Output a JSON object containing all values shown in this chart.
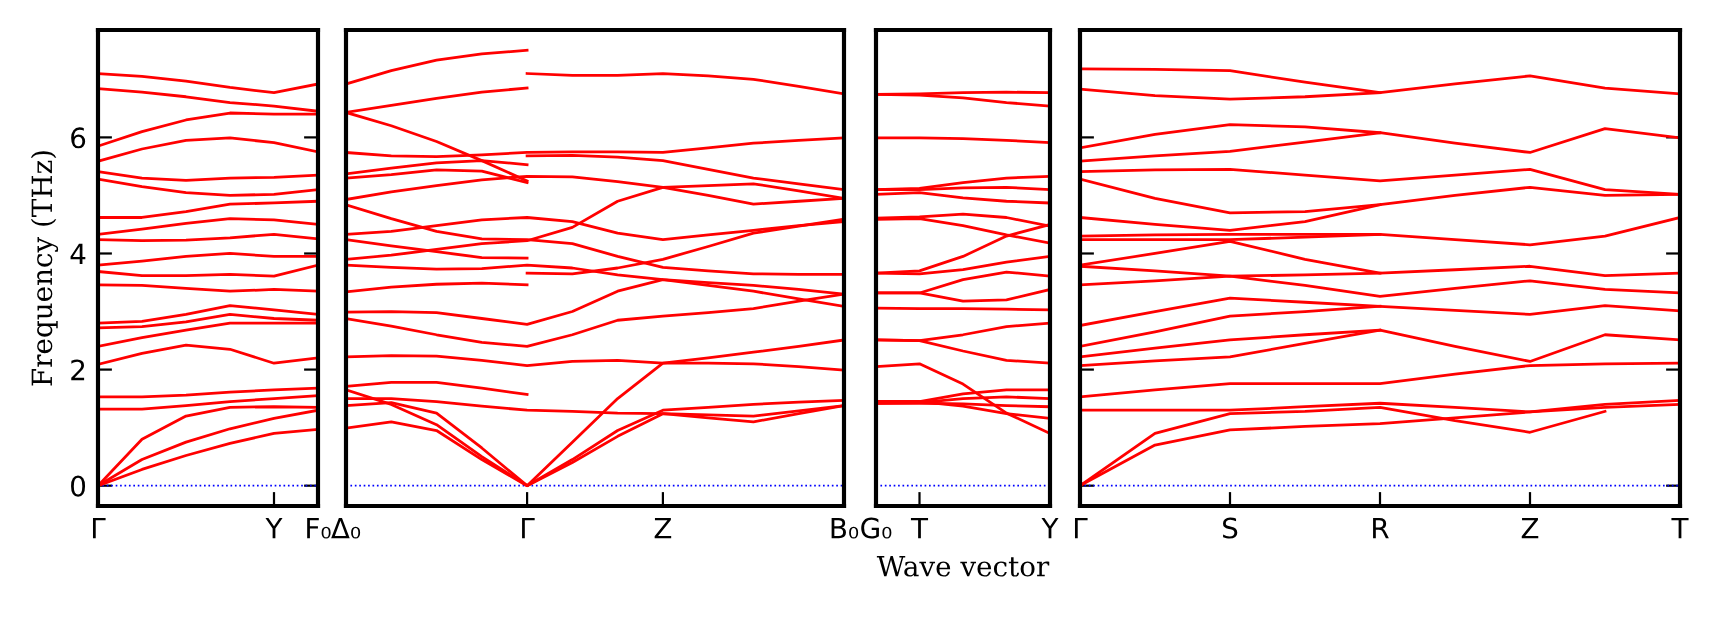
{
  "chart_data": [
    {
      "type": "line",
      "ylabel": "Frequency (THz)",
      "ylim": [
        -0.35,
        7.85
      ],
      "categories": [
        "Γ",
        null,
        null,
        null,
        "Y",
        "F₀"
      ],
      "yticks": [
        0,
        2,
        4,
        6
      ],
      "grid": false,
      "marker": "none",
      "line_style": "solid",
      "ref_lines": [
        {
          "axis": "y",
          "value": 0,
          "color": "#0000ff",
          "line_style": "dotted"
        }
      ],
      "series": [
        {
          "color": "#ff0000",
          "values": [
            7.1,
            7.05,
            6.97,
            6.86,
            6.77,
            6.92
          ]
        },
        {
          "color": "#ff0000",
          "values": [
            6.84,
            6.78,
            6.7,
            6.6,
            6.54,
            6.45
          ]
        },
        {
          "color": "#ff0000",
          "values": [
            5.85,
            6.1,
            6.3,
            6.42,
            6.4,
            6.4
          ]
        },
        {
          "color": "#ff0000",
          "values": [
            5.59,
            5.8,
            5.95,
            5.99,
            5.91,
            5.75
          ]
        },
        {
          "color": "#ff0000",
          "values": [
            5.41,
            5.3,
            5.26,
            5.3,
            5.31,
            5.35
          ]
        },
        {
          "color": "#ff0000",
          "values": [
            5.28,
            5.15,
            5.05,
            5.0,
            5.02,
            5.1
          ]
        },
        {
          "color": "#ff0000",
          "values": [
            4.62,
            4.62,
            4.72,
            4.85,
            4.87,
            4.9
          ]
        },
        {
          "color": "#ff0000",
          "values": [
            4.33,
            4.42,
            4.52,
            4.6,
            4.58,
            4.5
          ]
        },
        {
          "color": "#ff0000",
          "values": [
            4.24,
            4.22,
            4.23,
            4.27,
            4.33,
            4.25
          ]
        },
        {
          "color": "#ff0000",
          "values": [
            3.8,
            3.87,
            3.95,
            4.0,
            3.95,
            3.95
          ]
        },
        {
          "color": "#ff0000",
          "values": [
            3.69,
            3.62,
            3.62,
            3.64,
            3.61,
            3.8
          ]
        },
        {
          "color": "#ff0000",
          "values": [
            3.46,
            3.45,
            3.4,
            3.35,
            3.38,
            3.35
          ]
        },
        {
          "color": "#ff0000",
          "values": [
            2.8,
            2.83,
            2.95,
            3.1,
            3.03,
            2.95
          ]
        },
        {
          "color": "#ff0000",
          "values": [
            2.72,
            2.74,
            2.82,
            2.95,
            2.88,
            2.85
          ]
        },
        {
          "color": "#ff0000",
          "values": [
            2.4,
            2.55,
            2.68,
            2.8,
            2.8,
            2.8
          ]
        },
        {
          "color": "#ff0000",
          "values": [
            2.09,
            2.28,
            2.42,
            2.35,
            2.11,
            2.2
          ]
        },
        {
          "color": "#ff0000",
          "values": [
            1.53,
            1.53,
            1.56,
            1.61,
            1.65,
            1.68
          ]
        },
        {
          "color": "#ff0000",
          "values": [
            1.32,
            1.32,
            1.38,
            1.45,
            1.5,
            1.55
          ]
        },
        {
          "color": "#ff0000",
          "values": [
            0,
            0.8,
            1.2,
            1.35,
            1.36,
            1.35
          ]
        },
        {
          "color": "#ff0000",
          "values": [
            0,
            0.45,
            0.75,
            0.98,
            1.16,
            1.3
          ]
        },
        {
          "color": "#ff0000",
          "values": [
            0,
            0.28,
            0.52,
            0.73,
            0.9,
            0.97
          ]
        }
      ]
    },
    {
      "type": "line",
      "ylim": [
        -0.35,
        7.85
      ],
      "tick_labels": "x",
      "categories": [
        "Δ₀",
        null,
        null,
        null,
        "Γ",
        null,
        null,
        "Z",
        null,
        null,
        null,
        "B₀"
      ],
      "grid": false,
      "marker": "none",
      "line_style": "solid",
      "ref_lines": [
        {
          "axis": "y",
          "value": 0,
          "color": "#0000ff",
          "line_style": "dotted"
        }
      ],
      "series": [
        {
          "color": "#ff0000",
          "values": [
            6.92,
            7.15,
            7.33,
            7.44,
            7.5,
            null,
            null,
            null,
            null,
            null,
            null,
            null
          ]
        },
        {
          "color": "#ff0000",
          "values": [
            6.43,
            6.55,
            6.67,
            6.78,
            6.85,
            null,
            null,
            null,
            null,
            null,
            null,
            null
          ]
        },
        {
          "color": "#ff0000",
          "values": [
            6.43,
            6.2,
            5.93,
            5.6,
            5.25,
            null,
            null,
            null,
            null,
            null,
            null,
            null
          ]
        },
        {
          "color": "#ff0000",
          "values": [
            5.74,
            5.68,
            5.67,
            5.7,
            5.74,
            5.75,
            5.75,
            5.74,
            5.82,
            5.9,
            5.95,
            5.99
          ]
        },
        {
          "color": "#ff0000",
          "values": [
            5.37,
            5.47,
            5.56,
            5.6,
            5.53,
            null,
            null,
            null,
            null,
            null,
            null,
            null
          ]
        },
        {
          "color": "#ff0000",
          "values": [
            5.3,
            5.36,
            5.44,
            5.42,
            5.22,
            null,
            null,
            null,
            null,
            null,
            null,
            null
          ]
        },
        {
          "color": "#ff0000",
          "values": [
            4.93,
            5.06,
            5.17,
            5.27,
            5.33,
            5.32,
            5.24,
            5.14,
            5.0,
            4.85,
            4.9,
            4.95
          ]
        },
        {
          "color": "#ff0000",
          "values": [
            4.84,
            4.6,
            4.38,
            4.25,
            4.24,
            4.17,
            3.95,
            3.76,
            3.7,
            3.65,
            3.64,
            3.64
          ]
        },
        {
          "color": "#ff0000",
          "values": [
            4.33,
            4.38,
            4.48,
            4.58,
            4.62,
            4.55,
            4.35,
            4.24,
            4.32,
            4.4,
            4.48,
            4.55
          ]
        },
        {
          "color": "#ff0000",
          "values": [
            4.24,
            4.13,
            4.03,
            3.93,
            3.92,
            null,
            null,
            null,
            null,
            null,
            null,
            null
          ]
        },
        {
          "color": "#ff0000",
          "values": [
            3.9,
            3.97,
            4.07,
            4.17,
            4.22,
            4.45,
            4.9,
            5.14,
            5.17,
            5.2,
            5.08,
            4.95
          ]
        },
        {
          "color": "#ff0000",
          "values": [
            3.8,
            3.76,
            3.73,
            3.74,
            3.8,
            3.75,
            3.63,
            3.55,
            3.5,
            3.45,
            3.38,
            3.3
          ]
        },
        {
          "color": "#ff0000",
          "values": [
            3.34,
            3.42,
            3.47,
            3.49,
            3.46,
            null,
            null,
            null,
            null,
            null,
            null,
            null
          ]
        },
        {
          "color": "#ff0000",
          "values": [
            2.99,
            3.0,
            2.98,
            2.88,
            2.78,
            3.0,
            3.35,
            3.55,
            3.45,
            3.35,
            3.22,
            3.09
          ]
        },
        {
          "color": "#ff0000",
          "values": [
            2.88,
            2.75,
            2.6,
            2.47,
            2.4,
            2.6,
            2.85,
            2.92,
            2.98,
            3.05,
            3.18,
            3.3
          ]
        },
        {
          "color": "#ff0000",
          "values": [
            2.22,
            2.24,
            2.23,
            2.16,
            2.07,
            2.14,
            2.16,
            2.11,
            2.2,
            2.3,
            2.4,
            2.51
          ]
        },
        {
          "color": "#ff0000",
          "values": [
            1.71,
            1.78,
            1.78,
            1.68,
            1.57,
            null,
            null,
            null,
            null,
            null,
            null,
            null
          ]
        },
        {
          "color": "#ff0000",
          "values": [
            1.5,
            1.5,
            1.45,
            1.37,
            1.3,
            1.28,
            1.25,
            1.24,
            1.17,
            1.1,
            1.24,
            1.38
          ]
        },
        {
          "color": "#ff0000",
          "values": [
            1.38,
            1.43,
            1.25,
            0.65,
            0,
            0.75,
            1.5,
            2.11,
            2.11,
            2.1,
            2.05,
            1.99
          ]
        },
        {
          "color": "#ff0000",
          "values": [
            1.65,
            1.4,
            1.05,
            0.5,
            0,
            0.45,
            0.95,
            1.3,
            1.35,
            1.4,
            1.44,
            1.47
          ]
        },
        {
          "color": "#ff0000",
          "values": [
            0.99,
            1.1,
            0.95,
            0.45,
            0,
            0.4,
            0.85,
            1.24,
            1.22,
            1.2,
            1.29,
            1.38
          ]
        },
        {
          "color": "#ff0000",
          "values": [
            null,
            null,
            null,
            null,
            7.1,
            7.07,
            7.07,
            7.1,
            7.06,
            7.0,
            6.88,
            6.75
          ]
        },
        {
          "color": "#ff0000",
          "values": [
            null,
            null,
            null,
            null,
            5.68,
            5.69,
            5.66,
            5.6,
            5.45,
            5.3,
            5.2,
            5.1
          ]
        },
        {
          "color": "#ff0000",
          "values": [
            null,
            null,
            null,
            null,
            3.66,
            3.65,
            3.75,
            3.9,
            4.12,
            4.35,
            4.47,
            4.59
          ]
        }
      ]
    },
    {
      "type": "line",
      "xlabel": "Wave vector",
      "ylim": [
        -0.35,
        7.85
      ],
      "tick_labels": "x",
      "categories": [
        "G₀",
        "T",
        null,
        null,
        "Y"
      ],
      "grid": false,
      "marker": "none",
      "line_style": "solid",
      "ref_lines": [
        {
          "axis": "y",
          "value": 0,
          "color": "#0000ff",
          "line_style": "dotted"
        }
      ],
      "series": [
        {
          "color": "#ff0000",
          "values": [
            6.74,
            6.75,
            6.77,
            6.78,
            6.77
          ]
        },
        {
          "color": "#ff0000",
          "values": [
            6.74,
            6.73,
            6.68,
            6.6,
            6.54
          ]
        },
        {
          "color": "#ff0000",
          "values": [
            5.99,
            5.99,
            5.98,
            5.95,
            5.91
          ]
        },
        {
          "color": "#ff0000",
          "values": [
            5.1,
            5.12,
            5.22,
            5.3,
            5.33
          ]
        },
        {
          "color": "#ff0000",
          "values": [
            5.1,
            5.1,
            5.13,
            5.14,
            5.1
          ]
        },
        {
          "color": "#ff0000",
          "values": [
            5.02,
            5.05,
            4.96,
            4.9,
            4.87
          ]
        },
        {
          "color": "#ff0000",
          "values": [
            4.61,
            4.63,
            4.68,
            4.62,
            4.47
          ]
        },
        {
          "color": "#ff0000",
          "values": [
            4.59,
            4.6,
            4.48,
            4.32,
            4.18
          ]
        },
        {
          "color": "#ff0000",
          "values": [
            3.66,
            3.7,
            3.95,
            4.3,
            4.5
          ]
        },
        {
          "color": "#ff0000",
          "values": [
            3.66,
            3.65,
            3.72,
            3.85,
            3.95
          ]
        },
        {
          "color": "#ff0000",
          "values": [
            3.32,
            3.32,
            3.55,
            3.68,
            3.61
          ]
        },
        {
          "color": "#ff0000",
          "values": [
            3.32,
            3.32,
            3.18,
            3.2,
            3.38
          ]
        },
        {
          "color": "#ff0000",
          "values": [
            3.06,
            3.05,
            3.05,
            3.04,
            3.03
          ]
        },
        {
          "color": "#ff0000",
          "values": [
            2.51,
            2.5,
            2.6,
            2.74,
            2.8
          ]
        },
        {
          "color": "#ff0000",
          "values": [
            2.51,
            2.5,
            2.32,
            2.16,
            2.11
          ]
        },
        {
          "color": "#ff0000",
          "values": [
            2.05,
            2.1,
            1.75,
            1.25,
            0.9
          ]
        },
        {
          "color": "#ff0000",
          "values": [
            1.45,
            1.45,
            1.58,
            1.65,
            1.65
          ]
        },
        {
          "color": "#ff0000",
          "values": [
            1.42,
            1.43,
            1.5,
            1.53,
            1.5
          ]
        },
        {
          "color": "#ff0000",
          "values": [
            1.42,
            1.42,
            1.41,
            1.38,
            1.36
          ]
        },
        {
          "color": "#ff0000",
          "values": [
            1.45,
            1.45,
            1.37,
            1.24,
            1.16
          ]
        }
      ]
    },
    {
      "type": "line",
      "ylim": [
        -0.35,
        7.85
      ],
      "tick_labels": "x",
      "categories": [
        "Γ",
        null,
        "S",
        null,
        "R",
        null,
        "Z",
        null,
        "T"
      ],
      "yticks": [
        {
          "value": 0,
          "label": null
        },
        {
          "value": 2,
          "label": null
        },
        {
          "value": 4,
          "label": null
        },
        {
          "value": 6,
          "label": null
        }
      ],
      "grid": false,
      "marker": "none",
      "line_style": "solid",
      "ref_lines": [
        {
          "axis": "y",
          "value": 0,
          "color": "#0000ff",
          "line_style": "dotted"
        }
      ],
      "series": [
        {
          "color": "#ff0000",
          "values": [
            7.18,
            7.17,
            7.15,
            6.95,
            6.77,
            6.92,
            7.06,
            6.85,
            6.75
          ]
        },
        {
          "color": "#ff0000",
          "values": [
            6.83,
            6.72,
            6.66,
            6.7,
            6.77,
            null,
            null,
            null,
            null
          ]
        },
        {
          "color": "#ff0000",
          "values": [
            5.82,
            6.05,
            6.22,
            6.18,
            6.08,
            5.9,
            5.74,
            6.15,
            5.99
          ]
        },
        {
          "color": "#ff0000",
          "values": [
            5.59,
            5.68,
            5.76,
            5.92,
            6.08,
            null,
            null,
            null,
            null
          ]
        },
        {
          "color": "#ff0000",
          "values": [
            5.41,
            5.44,
            5.45,
            5.35,
            5.25,
            5.35,
            5.45,
            5.1,
            5.02
          ]
        },
        {
          "color": "#ff0000",
          "values": [
            5.28,
            4.95,
            4.7,
            4.72,
            4.84,
            5.0,
            5.14,
            5.0,
            5.02
          ]
        },
        {
          "color": "#ff0000",
          "values": [
            4.62,
            4.5,
            4.4,
            4.55,
            4.84,
            null,
            null,
            null,
            null
          ]
        },
        {
          "color": "#ff0000",
          "values": [
            4.3,
            4.32,
            4.33,
            4.33,
            4.33,
            4.24,
            4.15,
            4.3,
            4.62
          ]
        },
        {
          "color": "#ff0000",
          "values": [
            4.24,
            4.24,
            4.24,
            4.28,
            4.33,
            null,
            null,
            null,
            null
          ]
        },
        {
          "color": "#ff0000",
          "values": [
            3.8,
            4.0,
            4.21,
            3.9,
            3.66,
            3.72,
            3.78,
            3.62,
            3.66
          ]
        },
        {
          "color": "#ff0000",
          "values": [
            3.78,
            3.7,
            3.61,
            3.63,
            3.66,
            null,
            null,
            null,
            null
          ]
        },
        {
          "color": "#ff0000",
          "values": [
            3.46,
            3.53,
            3.61,
            3.45,
            3.26,
            3.4,
            3.53,
            3.38,
            3.32
          ]
        },
        {
          "color": "#ff0000",
          "values": [
            2.76,
            3.0,
            3.23,
            3.16,
            3.09,
            3.02,
            2.95,
            3.1,
            3.01
          ]
        },
        {
          "color": "#ff0000",
          "values": [
            2.4,
            2.65,
            2.92,
            3.0,
            3.09,
            null,
            null,
            null,
            null
          ]
        },
        {
          "color": "#ff0000",
          "values": [
            2.22,
            2.37,
            2.51,
            2.6,
            2.68,
            2.4,
            2.14,
            2.6,
            2.51
          ]
        },
        {
          "color": "#ff0000",
          "values": [
            2.07,
            2.15,
            2.22,
            2.45,
            2.68,
            null,
            null,
            null,
            null
          ]
        },
        {
          "color": "#ff0000",
          "values": [
            1.53,
            1.65,
            1.76,
            1.76,
            1.76,
            1.92,
            2.07,
            2.1,
            2.11
          ]
        },
        {
          "color": "#ff0000",
          "values": [
            1.3,
            1.3,
            1.3,
            1.36,
            1.42,
            1.35,
            1.27,
            1.4,
            1.47
          ]
        },
        {
          "color": "#ff0000",
          "values": [
            0,
            0.9,
            1.24,
            1.28,
            1.35,
            1.12,
            0.92,
            1.28,
            null
          ]
        },
        {
          "color": "#ff0000",
          "values": [
            0,
            0.7,
            0.96,
            1.02,
            1.07,
            1.17,
            1.27,
            1.35,
            1.4
          ]
        }
      ]
    }
  ]
}
